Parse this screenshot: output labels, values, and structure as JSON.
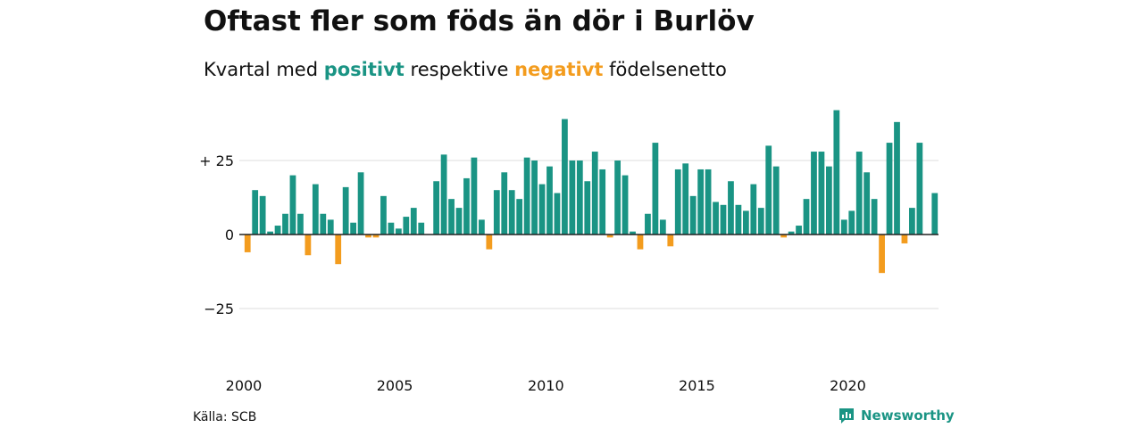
{
  "title": "Oftast fler som föds än dör i Burlöv",
  "subtitle": {
    "prefix": "Kvartal med",
    "positive_word": "positivt",
    "middle": "respektive",
    "negative_word": "negativt",
    "suffix": "födelsenetto"
  },
  "source": "Källa: SCB",
  "brand": "Newsworthy",
  "colors": {
    "positive": "#1a9484",
    "negative": "#f39c1e",
    "grid": "#dddddd",
    "zero_line": "#222222"
  },
  "chart_data": {
    "type": "bar",
    "start_year": 2000,
    "start_quarter": 1,
    "ylim": [
      -40,
      45
    ],
    "yticks": [
      {
        "value": 25,
        "label": "+ 25"
      },
      {
        "value": 0,
        "label": "0"
      },
      {
        "value": -25,
        "label": "−25"
      }
    ],
    "xticks": [
      "2000",
      "2005",
      "2010",
      "2015",
      "2020"
    ],
    "values": [
      -6,
      15,
      13,
      1,
      3,
      7,
      20,
      7,
      -7,
      17,
      7,
      5,
      -10,
      16,
      4,
      21,
      -1,
      -1,
      13,
      4,
      2,
      6,
      9,
      4,
      0,
      18,
      27,
      12,
      9,
      19,
      26,
      5,
      -5,
      15,
      21,
      15,
      12,
      26,
      25,
      17,
      23,
      14,
      39,
      25,
      25,
      18,
      28,
      22,
      -1,
      25,
      20,
      1,
      -5,
      7,
      31,
      5,
      -4,
      22,
      24,
      13,
      22,
      22,
      11,
      10,
      18,
      10,
      8,
      17,
      9,
      30,
      23,
      -1,
      1,
      3,
      12,
      28,
      28,
      23,
      42,
      5,
      8,
      28,
      21,
      12,
      -13,
      31,
      38,
      -3,
      9,
      31,
      0,
      14
    ]
  }
}
